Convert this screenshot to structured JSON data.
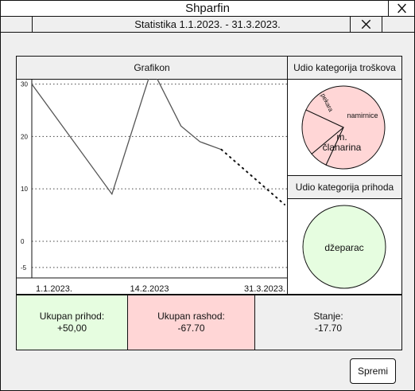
{
  "app": {
    "title": "Shparfin"
  },
  "dialog": {
    "title": "Statistika 1.1.2023. - 31.3.2023."
  },
  "chart_panel": {
    "header": "Grafikon"
  },
  "expense_panel": {
    "header": "Udio kategorija troškova"
  },
  "income_panel": {
    "header": "Udio kategorija prihoda"
  },
  "summary": {
    "income_label": "Ukupan prihod:",
    "income_value": "+50,00",
    "expense_label": "Ukupan rashod:",
    "expense_value": "-67.70",
    "balance_label": "Stanje:",
    "balance_value": "-17.70"
  },
  "buttons": {
    "save": "Spremi"
  },
  "colors": {
    "income_bg": "#e6fde0",
    "expense_bg": "#ffd6d6",
    "neutral_bg": "#efefef"
  },
  "chart_data": [
    {
      "type": "line",
      "title": "Grafikon",
      "ylim": [
        -7,
        31
      ],
      "yticks": [
        30,
        20,
        10,
        0,
        -5
      ],
      "xticks": [
        "1.1.2023.",
        "14.2.2023",
        "31.3.2023."
      ],
      "grid": true,
      "series": [
        {
          "style": "solid",
          "points": [
            [
              0,
              30
            ],
            [
              0.317,
              9
            ],
            [
              0.475,
              33
            ],
            [
              0.59,
              22
            ],
            [
              0.665,
              19
            ],
            [
              0.75,
              17.5
            ]
          ]
        },
        {
          "style": "dotted",
          "points": [
            [
              0.75,
              17.5
            ],
            [
              1.0,
              7
            ]
          ]
        }
      ]
    },
    {
      "type": "pie",
      "title": "Udio kategorija troškova",
      "slices": [
        {
          "label": "m. članarina",
          "value": 75
        },
        {
          "label": "pekara",
          "value": 7
        },
        {
          "label": "namirnice",
          "value": 18
        }
      ]
    },
    {
      "type": "pie",
      "title": "Udio kategorija prihoda",
      "slices": [
        {
          "label": "džeparac",
          "value": 100
        }
      ]
    }
  ]
}
